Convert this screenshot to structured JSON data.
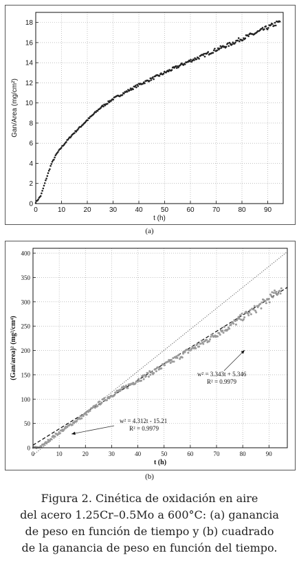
{
  "chart_data": [
    {
      "type": "scatter",
      "title": "",
      "xlabel": "t (h)",
      "ylabel": "Gan/Area (mg/cm²)",
      "xlim": [
        0,
        96
      ],
      "ylim": [
        0,
        19
      ],
      "xticks": [
        0,
        10,
        20,
        30,
        40,
        50,
        60,
        70,
        80,
        90
      ],
      "yticks": [
        0,
        2,
        4,
        6,
        8,
        10,
        12,
        14,
        16,
        18
      ],
      "grid": true,
      "marker_color": "#222222",
      "x": [
        0,
        2,
        4,
        6,
        8,
        10,
        14,
        20,
        25,
        30,
        35,
        40,
        45,
        50,
        55,
        60,
        65,
        70,
        75,
        80,
        85,
        90,
        95
      ],
      "y": [
        0.1,
        0.8,
        2.4,
        3.9,
        4.9,
        5.6,
        6.8,
        8.3,
        9.5,
        10.4,
        11.1,
        11.8,
        12.4,
        13.0,
        13.6,
        14.2,
        14.7,
        15.3,
        15.8,
        16.4,
        16.9,
        17.5,
        18.1
      ]
    },
    {
      "type": "scatter",
      "title": "",
      "xlabel": "t (h)",
      "ylabel": "(Gan/area)² (mg²/cm⁴)",
      "xlim": [
        0,
        97
      ],
      "ylim": [
        0,
        410
      ],
      "xticks": [
        0,
        10,
        20,
        30,
        40,
        50,
        60,
        70,
        80,
        90
      ],
      "yticks": [
        0,
        50,
        100,
        150,
        200,
        250,
        300,
        350,
        400
      ],
      "grid": true,
      "marker_color": "#9a9a9a",
      "x": [
        0,
        2,
        4,
        6,
        8,
        10,
        14,
        20,
        25,
        30,
        35,
        40,
        45,
        50,
        55,
        60,
        65,
        70,
        75,
        80,
        85,
        90,
        95
      ],
      "y": [
        0,
        0.6,
        5.8,
        15.2,
        24,
        31.4,
        46.2,
        68.9,
        90.3,
        108.2,
        123.2,
        139.2,
        153.8,
        169,
        185,
        201.6,
        216.1,
        234.1,
        249.6,
        269,
        285.6,
        306.3,
        327.6
      ],
      "fits": [
        {
          "label": "w² = 4.312t - 15.21",
          "r2": "R² = 0.9979",
          "slope": 4.312,
          "intercept": -15.21,
          "style": "dotted"
        },
        {
          "label": "w² = 3.343t + 5.346",
          "r2": "R² = 0.9979",
          "slope": 3.343,
          "intercept": 5.346,
          "style": "dashed"
        }
      ]
    }
  ],
  "panels": {
    "a": {
      "label": "(a)"
    },
    "b": {
      "label": "(b)"
    }
  },
  "caption": {
    "lines": [
      "Figura 2. Cinética de oxidación en aire",
      "del acero 1.25Cr–0.5Mo a 600°C: (a) ganancia",
      "de peso en función de tiempo y (b) cuadrado",
      "de la ganancia de peso en función del tiempo."
    ]
  },
  "annotations": {
    "fit1": {
      "eq": "w² = 4.312t - 15.21",
      "r2": "R² = 0.9979"
    },
    "fit2": {
      "eq": "w² = 3.343t + 5.346",
      "r2": "R² = 0.9979"
    }
  }
}
